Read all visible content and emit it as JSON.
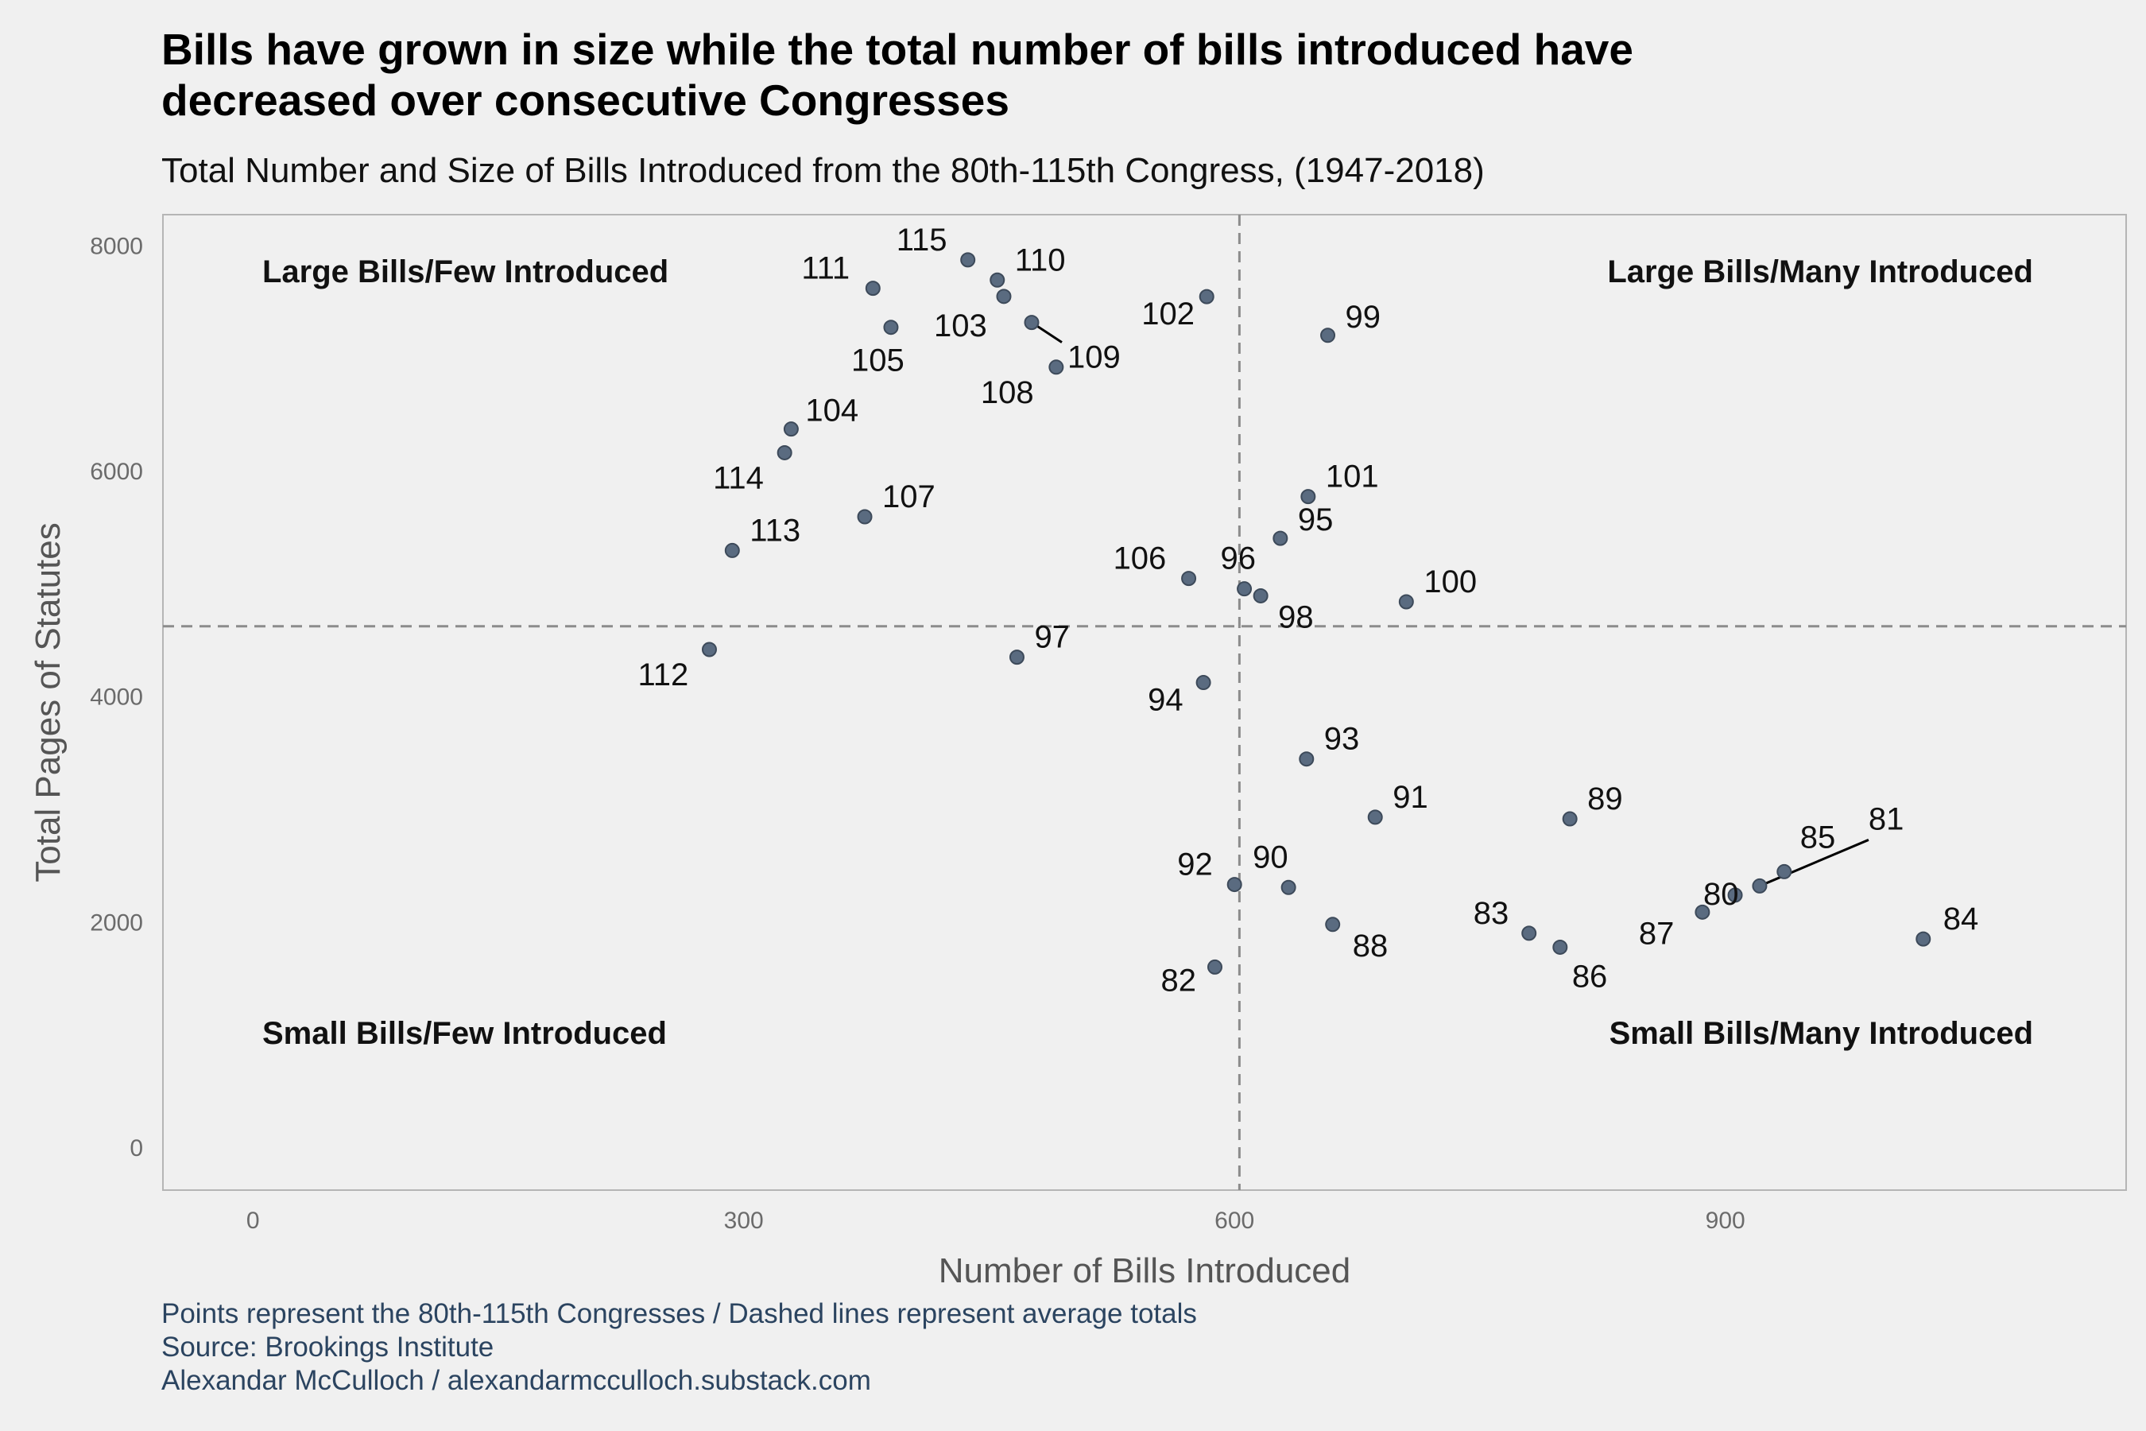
{
  "header": {
    "title_line1": "Bills have grown in size while the total number of bills introduced have",
    "title_line2": "decreased over consecutive Congresses",
    "subtitle": "Total Number and Size of Bills Introduced from the 80th-115th Congress, (1947-2018)"
  },
  "caption": {
    "line1": "Points represent the 80th-115th Congresses / Dashed lines represent average totals",
    "line2": "Source: Brookings Institute",
    "line3": "Alexandar McCulloch / alexandarmcculloch.substack.com"
  },
  "colors": {
    "background": "#f0f0f0",
    "point": "#5a6b80",
    "point_stroke": "#3d4a5a",
    "reference_line": "#8c8c8c",
    "axis_text": "#6b6b6b",
    "caption": "#2b4460"
  },
  "chart_data": {
    "type": "scatter",
    "xlabel": "Number of Bills Introduced",
    "ylabel": "Total Pages of Statutes",
    "xlim": [
      -55,
      1145
    ],
    "ylim": [
      -380,
      8270
    ],
    "x_ticks": [
      0,
      300,
      600,
      900
    ],
    "y_ticks": [
      0,
      2000,
      4000,
      6000,
      8000
    ],
    "grid": false,
    "reference_lines": {
      "x_mean": 603,
      "y_mean": 4620,
      "style": "dashed"
    },
    "quadrant_labels": [
      {
        "text": "Large Bills/Few Introduced",
        "position": "top-left"
      },
      {
        "text": "Large Bills/Many Introduced",
        "position": "top-right"
      },
      {
        "text": "Small Bills/Few Introduced",
        "position": "bottom-left"
      },
      {
        "text": "Small Bills/Many Introduced",
        "position": "bottom-right"
      }
    ],
    "points": [
      {
        "label": "80",
        "x": 906,
        "y": 2236
      },
      {
        "label": "81",
        "x": 921,
        "y": 2317
      },
      {
        "label": "82",
        "x": 588,
        "y": 1598
      },
      {
        "label": "83",
        "x": 780,
        "y": 1898
      },
      {
        "label": "84",
        "x": 1021,
        "y": 1847
      },
      {
        "label": "85",
        "x": 936,
        "y": 2444
      },
      {
        "label": "86",
        "x": 799,
        "y": 1774
      },
      {
        "label": "87",
        "x": 886,
        "y": 2085
      },
      {
        "label": "88",
        "x": 660,
        "y": 1976
      },
      {
        "label": "89",
        "x": 805,
        "y": 2912
      },
      {
        "label": "90",
        "x": 633,
        "y": 2304
      },
      {
        "label": "91",
        "x": 686,
        "y": 2927
      },
      {
        "label": "92",
        "x": 600,
        "y": 2330
      },
      {
        "label": "93",
        "x": 644,
        "y": 3443
      },
      {
        "label": "94",
        "x": 581,
        "y": 4121
      },
      {
        "label": "95",
        "x": 628,
        "y": 5400
      },
      {
        "label": "96",
        "x": 606,
        "y": 4952
      },
      {
        "label": "97",
        "x": 467,
        "y": 4346
      },
      {
        "label": "98",
        "x": 616,
        "y": 4890
      },
      {
        "label": "99",
        "x": 657,
        "y": 7200
      },
      {
        "label": "100",
        "x": 705,
        "y": 4837
      },
      {
        "label": "101",
        "x": 645,
        "y": 5770
      },
      {
        "label": "102",
        "x": 583,
        "y": 7543
      },
      {
        "label": "103",
        "x": 459,
        "y": 7545
      },
      {
        "label": "104",
        "x": 329,
        "y": 6369
      },
      {
        "label": "105",
        "x": 390,
        "y": 7271
      },
      {
        "label": "106",
        "x": 572,
        "y": 5044
      },
      {
        "label": "107",
        "x": 374,
        "y": 5591
      },
      {
        "label": "108",
        "x": 491,
        "y": 6918
      },
      {
        "label": "109",
        "x": 476,
        "y": 7314
      },
      {
        "label": "110",
        "x": 455,
        "y": 7690
      },
      {
        "label": "111",
        "x": 379,
        "y": 7617
      },
      {
        "label": "112",
        "x": 279,
        "y": 4414
      },
      {
        "label": "113",
        "x": 293,
        "y": 5292
      },
      {
        "label": "114",
        "x": 325,
        "y": 6159
      },
      {
        "label": "115",
        "x": 437,
        "y": 7869
      }
    ]
  }
}
